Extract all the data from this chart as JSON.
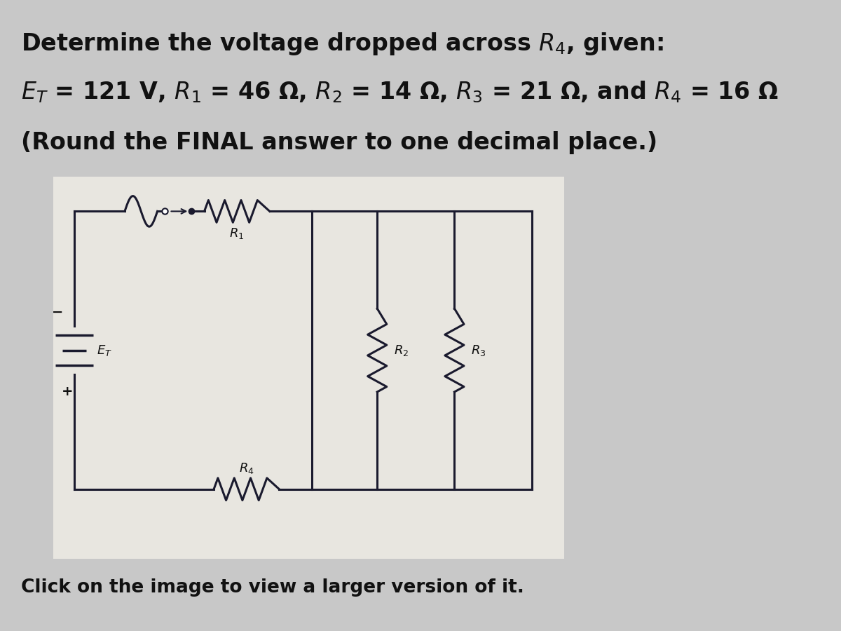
{
  "title_line1": "Determine the voltage dropped across $R_4$, given:",
  "title_line2": "$E_T$ = 121 V, $R_1$ = 46 Ω, $R_2$ = 14 Ω, $R_3$ = 21 Ω, and $R_4$ = 16 Ω",
  "title_line3": "(Round the FINAL answer to one decimal place.)",
  "footer": "Click on the image to view a larger version of it.",
  "bg_color": "#c8c8c8",
  "circuit_bg": "#e8e6e0",
  "text_color": "#111111",
  "line_color": "#1a1a2e",
  "font_size_title": 24,
  "font_size_footer": 19
}
